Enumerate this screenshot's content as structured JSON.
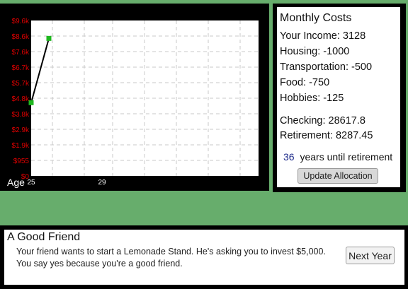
{
  "chart_data": {
    "type": "line",
    "xlabel": "Age",
    "x_ticks": [
      "25",
      "29"
    ],
    "y_ticks": [
      "$0",
      "$955",
      "$1.9k",
      "$2.9k",
      "$3.8k",
      "$4.8k",
      "$5.7k",
      "$6.7k",
      "$7.6k",
      "$8.6k",
      "$9.6k"
    ],
    "ylim": [
      0,
      9550
    ],
    "x_range": [
      25,
      29
    ],
    "grid": true,
    "points": [
      {
        "x": 25,
        "y": 4500,
        "marker_color": "#1fb81f"
      },
      {
        "x": 26,
        "y": 8450,
        "marker_color": "#1fb81f"
      }
    ],
    "line_color": "#000000",
    "tick_color": "#e00000"
  },
  "costs": {
    "title": "Monthly Costs",
    "income": "Your Income: 3128",
    "housing": "Housing: -1000",
    "transportation": "Transportation: -500",
    "food": "Food: -750",
    "hobbies": "Hobbies: -125",
    "checking": "Checking: 28617.8",
    "retirement": "Retirement: 8287.45",
    "years_value": "36",
    "years_label": "years until retirement",
    "update_button": "Update Allocation"
  },
  "event": {
    "title": "A Good Friend",
    "description": "Your friend wants to start a Lemonade Stand. He's asking you to invest $5,000. You say yes because you're a good friend.",
    "next_button": "Next Year"
  },
  "colors": {
    "background": "#67ad6c",
    "panel_border": "#000000",
    "accent_years": "#1d2b8a"
  }
}
